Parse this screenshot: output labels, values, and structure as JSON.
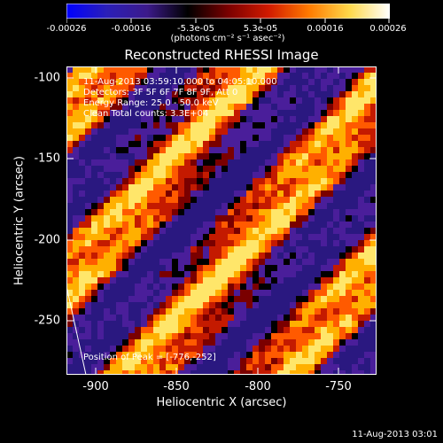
{
  "colorbar": {
    "colors": [
      "#0000ff",
      "#2b1fb8",
      "#3c1a8a",
      "#000000",
      "#7a0000",
      "#d11a00",
      "#ff7a00",
      "#ffd84a",
      "#ffffff"
    ],
    "tick_labels": [
      "-0.00026",
      "-0.00016",
      "-5.3e-05",
      "5.3e-05",
      "0.00016",
      "0.00026"
    ],
    "unit": "(photons cm⁻² s⁻¹ asec⁻²)"
  },
  "title": "Reconstructed RHESSI Image",
  "annotations": {
    "time": "11-Aug-2013 03:59:10.000 to 04:05:10.000",
    "detectors": "Detectors: 3F 5F 6F 7F 8F 9F, Att 0",
    "energy": "Energy Range: 25.0 - 50.0 keV",
    "clean": "Clean     Total counts: 3.3E+04",
    "peak": "Position of Peak = [-776,-252]"
  },
  "axes": {
    "xlabel": "Heliocentric X (arcsec)",
    "ylabel": "Heliocentric Y (arcsec)",
    "x_ticks": [
      "-900",
      "-850",
      "-800",
      "-750"
    ],
    "y_ticks": [
      "-100",
      "-150",
      "-200",
      "-250"
    ],
    "xlim": [
      -918,
      -727
    ],
    "ylim": [
      -285,
      -95
    ]
  },
  "footer": "11-Aug-2013 03:01",
  "palette": [
    "#2a1880",
    "#4a1e9a",
    "#5a2aa8",
    "#000000",
    "#7a0000",
    "#c41a00",
    "#ff5a00",
    "#ffb000",
    "#ffe66a"
  ]
}
